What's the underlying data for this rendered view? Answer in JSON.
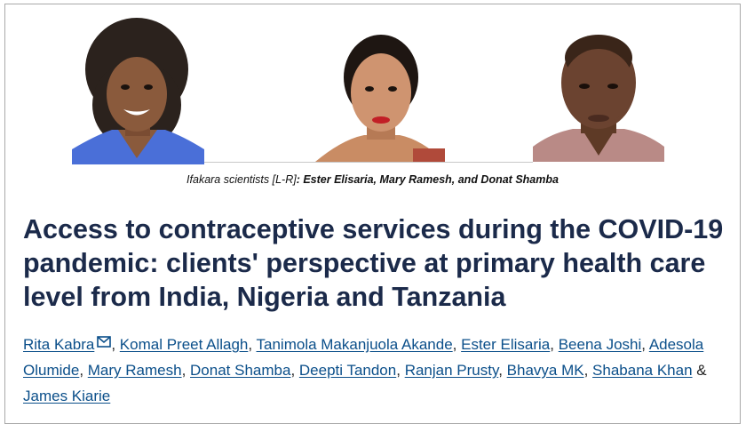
{
  "caption": {
    "prefix": "Ifakara scientists [L-R]",
    "names": ": Ester Elisaria, Mary Ramesh, and Donat Shamba"
  },
  "photos": [
    "Ester Elisaria",
    "Mary Ramesh",
    "Donat Shamba"
  ],
  "title": "Access to contraceptive services during the COVID-19 pandemic: clients' perspective at primary health care level from India, Nigeria and Tanzania",
  "authors": [
    "Rita Kabra",
    "Komal Preet Allagh",
    "Tanimola Makanjuola Akande",
    "Ester Elisaria",
    "Beena Joshi",
    "Adesola Olumide",
    "Mary Ramesh",
    "Donat Shamba",
    "Deepti Tandon",
    "Ranjan Prusty",
    "Bhavya MK",
    "Shabana Khan",
    "James Kiarie"
  ],
  "author_separator": ", ",
  "last_separator": " & ",
  "icons": {
    "corresponding_author": "mail-icon"
  },
  "colors": {
    "title": "#1b2a4a",
    "link": "#0b4f8a"
  }
}
